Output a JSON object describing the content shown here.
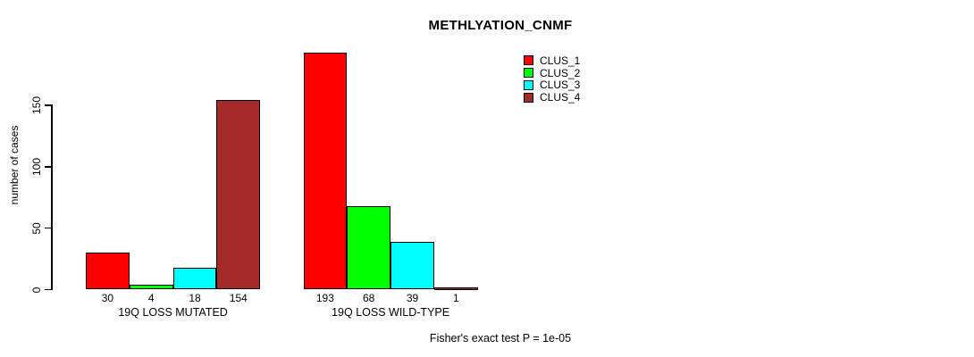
{
  "chart_data": {
    "type": "bar",
    "title": "METHLYATION_CNMF",
    "ylabel": "number of cases",
    "xlabel": "",
    "ylim": [
      0,
      150
    ],
    "yticks": [
      "0",
      "50",
      "100",
      "150"
    ],
    "grid": false,
    "legend_position": "top-right",
    "series": [
      {
        "name": "CLUS_1",
        "color": "#FF0000"
      },
      {
        "name": "CLUS_2",
        "color": "#00FF00"
      },
      {
        "name": "CLUS_3",
        "color": "#00FFFF"
      },
      {
        "name": "CLUS_4",
        "color": "#A52A2A"
      }
    ],
    "groups": [
      {
        "label": "19Q LOSS MUTATED",
        "values": [
          30,
          4,
          18,
          154
        ]
      },
      {
        "label": "19Q LOSS WILD-TYPE",
        "values": [
          193,
          68,
          39,
          1
        ]
      }
    ],
    "annotation": "Fisher's exact test P = 1e-05"
  }
}
